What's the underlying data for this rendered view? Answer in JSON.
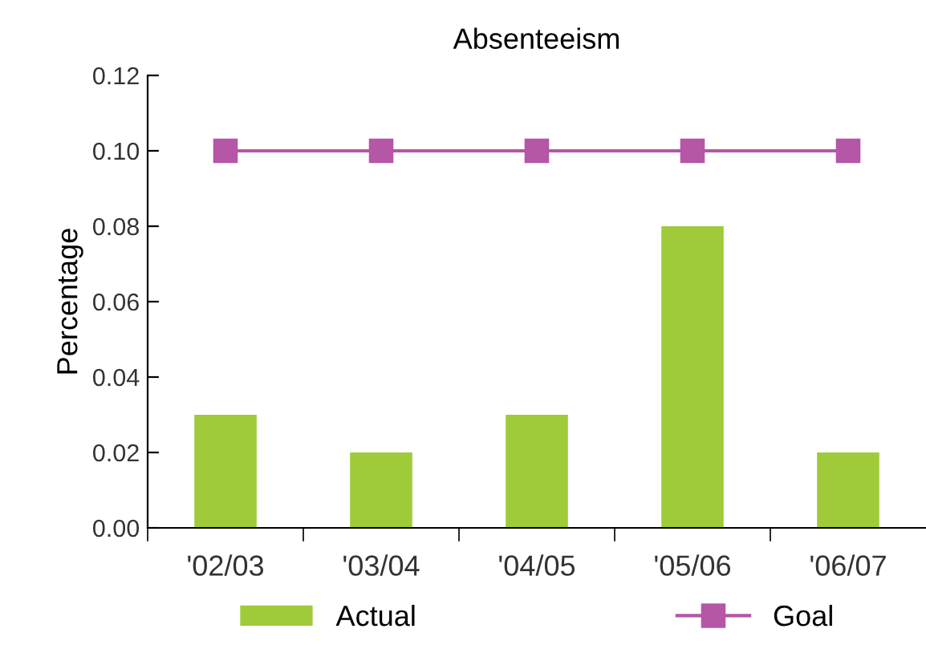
{
  "chart_data": {
    "type": "bar",
    "title": "Absenteeism",
    "ylabel": "Percentage",
    "categories": [
      "'02/03",
      "'03/04",
      "'04/05",
      "'05/06",
      "'06/07"
    ],
    "series": [
      {
        "name": "Actual",
        "color": "#9fcb3a",
        "values": [
          0.03,
          0.02,
          0.03,
          0.08,
          0.02
        ]
      },
      {
        "name": "Goal",
        "type": "line",
        "color": "#b556a6",
        "marker": "square",
        "values": [
          0.1,
          0.1,
          0.1,
          0.1,
          0.1
        ]
      }
    ],
    "ylim": [
      0,
      0.12
    ],
    "yticks": [
      {
        "value": 0,
        "label": "0.00"
      },
      {
        "value": 0.02,
        "label": "0.02"
      },
      {
        "value": 0.04,
        "label": "0.04"
      },
      {
        "value": 0.06,
        "label": "0.06"
      },
      {
        "value": 0.08,
        "label": "0.08"
      },
      {
        "value": 0.1,
        "label": "0.10"
      },
      {
        "value": 0.12,
        "label": "0.12"
      }
    ],
    "grid": false,
    "legend": "bottom"
  }
}
